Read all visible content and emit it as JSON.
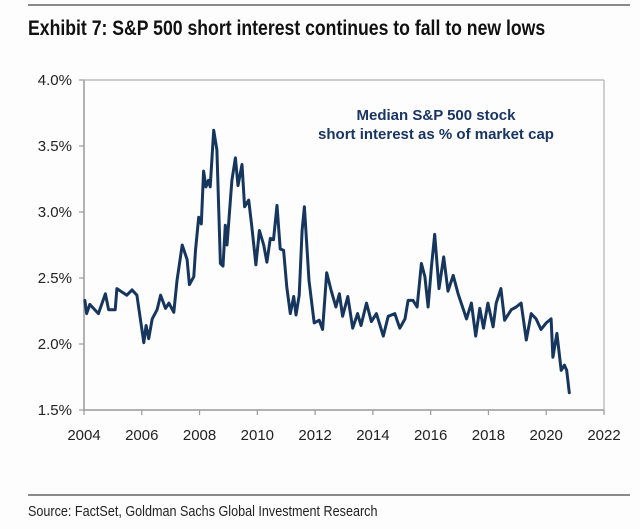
{
  "title": "Exhibit 7: S&P 500 short interest continues to fall to new lows",
  "source": "Source: FactSet, Goldman Sachs Global Investment Research",
  "chart_data": {
    "type": "line",
    "title": "",
    "xlabel": "",
    "ylabel": "",
    "annotation": [
      "Median S&P 500 stock",
      "short interest as % of market cap"
    ],
    "xlim": [
      2004,
      2022
    ],
    "ylim": [
      1.5,
      4.0
    ],
    "x_ticks": [
      2004,
      2006,
      2008,
      2010,
      2012,
      2014,
      2016,
      2018,
      2020,
      2022
    ],
    "x_tick_labels": [
      "2004",
      "2006",
      "2008",
      "2010",
      "2012",
      "2014",
      "2016",
      "2018",
      "2020",
      "2022"
    ],
    "y_ticks": [
      1.5,
      2.0,
      2.5,
      3.0,
      3.5,
      4.0
    ],
    "y_tick_labels": [
      "1.5%",
      "2.0%",
      "2.5%",
      "3.0%",
      "3.5%",
      "4.0%"
    ],
    "grid": false,
    "line_color": "#17365d",
    "series": [
      {
        "x": [
          2004.03,
          2004.09,
          2004.2,
          2004.5,
          2004.74,
          2004.85,
          2005.08,
          2005.14,
          2005.48,
          2005.66,
          2005.83,
          2006.07,
          2006.15,
          2006.24,
          2006.36,
          2006.53,
          2006.65,
          2006.82,
          2006.94,
          2007.11,
          2007.22,
          2007.4,
          2007.57,
          2007.65,
          2007.8,
          2007.86,
          2007.97,
          2008.06,
          2008.14,
          2008.22,
          2008.31,
          2008.37,
          2008.49,
          2008.6,
          2008.72,
          2008.81,
          2008.89,
          2008.95,
          2009.12,
          2009.24,
          2009.33,
          2009.47,
          2009.56,
          2009.7,
          2009.81,
          2009.95,
          2010.07,
          2010.22,
          2010.33,
          2010.45,
          2010.56,
          2010.68,
          2010.79,
          2010.91,
          2011.02,
          2011.14,
          2011.26,
          2011.34,
          2011.45,
          2011.55,
          2011.63,
          2011.79,
          2011.97,
          2012.14,
          2012.26,
          2012.4,
          2012.55,
          2012.72,
          2012.84,
          2012.95,
          2013.13,
          2013.3,
          2013.47,
          2013.59,
          2013.78,
          2013.95,
          2014.12,
          2014.36,
          2014.53,
          2014.76,
          2014.93,
          2015.11,
          2015.22,
          2015.39,
          2015.53,
          2015.68,
          2015.8,
          2015.91,
          2016.03,
          2016.14,
          2016.29,
          2016.45,
          2016.6,
          2016.78,
          2016.95,
          2017.12,
          2017.24,
          2017.41,
          2017.56,
          2017.7,
          2017.83,
          2017.98,
          2018.16,
          2018.27,
          2018.43,
          2018.56,
          2018.79,
          2018.96,
          2019.13,
          2019.31,
          2019.48,
          2019.65,
          2019.82,
          2020.0,
          2020.17,
          2020.23,
          2020.37,
          2020.52,
          2020.63,
          2020.71,
          2020.8
        ],
        "y": [
          2.33,
          2.23,
          2.3,
          2.23,
          2.38,
          2.26,
          2.26,
          2.42,
          2.37,
          2.41,
          2.37,
          2.01,
          2.14,
          2.04,
          2.19,
          2.26,
          2.37,
          2.27,
          2.31,
          2.24,
          2.48,
          2.75,
          2.64,
          2.45,
          2.51,
          2.71,
          2.96,
          2.91,
          3.31,
          3.19,
          3.24,
          3.19,
          3.62,
          3.47,
          2.61,
          2.59,
          2.9,
          2.75,
          3.24,
          3.41,
          3.2,
          3.36,
          3.04,
          3.09,
          2.89,
          2.6,
          2.86,
          2.75,
          2.62,
          2.8,
          2.79,
          3.05,
          2.72,
          2.71,
          2.43,
          2.23,
          2.36,
          2.22,
          2.37,
          2.86,
          3.04,
          2.48,
          2.16,
          2.18,
          2.11,
          2.54,
          2.41,
          2.28,
          2.38,
          2.21,
          2.36,
          2.12,
          2.23,
          2.14,
          2.31,
          2.17,
          2.23,
          2.06,
          2.21,
          2.23,
          2.12,
          2.19,
          2.33,
          2.33,
          2.28,
          2.61,
          2.51,
          2.28,
          2.59,
          2.83,
          2.42,
          2.66,
          2.4,
          2.52,
          2.38,
          2.27,
          2.19,
          2.31,
          2.06,
          2.27,
          2.12,
          2.31,
          2.13,
          2.31,
          2.42,
          2.18,
          2.26,
          2.28,
          2.31,
          2.03,
          2.23,
          2.19,
          2.11,
          2.16,
          2.19,
          1.9,
          2.08,
          1.8,
          1.84,
          1.8,
          1.63
        ]
      }
    ]
  }
}
